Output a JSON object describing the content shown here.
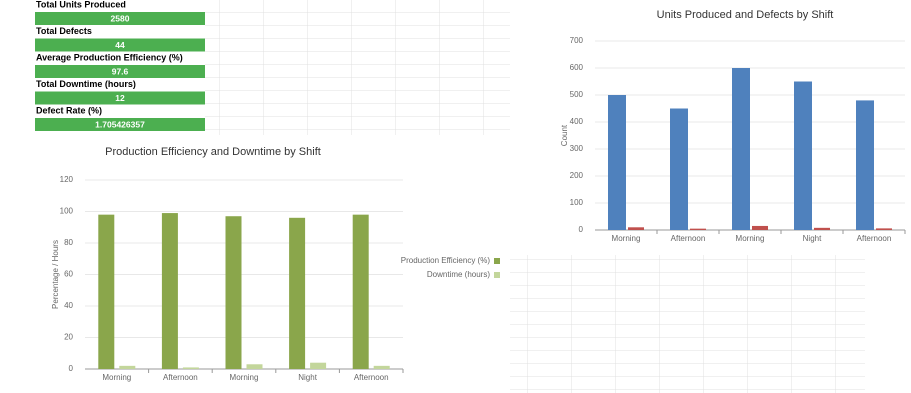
{
  "kpis": [
    {
      "label": "Total Units Produced",
      "value": 2580
    },
    {
      "label": "Total Defects",
      "value": 44
    },
    {
      "label": "Average Production Efficiency (%)",
      "value": 97.6
    },
    {
      "label": "Total Downtime (hours)",
      "value": 12
    },
    {
      "label": "Defect Rate (%)",
      "value": 1.705426357
    }
  ],
  "chart_data": [
    {
      "type": "bar",
      "title": "Units Produced and Defects by Shift",
      "y_label": "Count",
      "categories": [
        "Morning",
        "Afternoon",
        "Morning",
        "Night",
        "Afternoon"
      ],
      "series": [
        {
          "color": "#4f81bd",
          "values": [
            500,
            450,
            600,
            550,
            480
          ]
        },
        {
          "color": "#c0504d",
          "values": [
            10,
            5,
            15,
            8,
            6
          ]
        }
      ],
      "ylim": [
        0,
        700
      ],
      "yticks": [
        0,
        100,
        200,
        300,
        400,
        500,
        600,
        700
      ],
      "grid": true
    },
    {
      "type": "bar",
      "title": "Production Efficiency and Downtime by Shift",
      "y_label": "Percentage / Hours",
      "categories": [
        "Morning",
        "Afternoon",
        "Morning",
        "Night",
        "Afternoon"
      ],
      "series": [
        {
          "name": "Production Efficiency (%)",
          "color": "#8aa64b",
          "values": [
            98,
            99,
            97,
            96,
            98
          ]
        },
        {
          "name": "Downtime (hours)",
          "color": "#c3d69b",
          "values": [
            2,
            1,
            3,
            4,
            2
          ]
        }
      ],
      "ylim": [
        0,
        120
      ],
      "yticks": [
        0,
        20,
        40,
        60,
        80,
        100,
        120
      ],
      "grid": true,
      "legend": "right"
    }
  ]
}
